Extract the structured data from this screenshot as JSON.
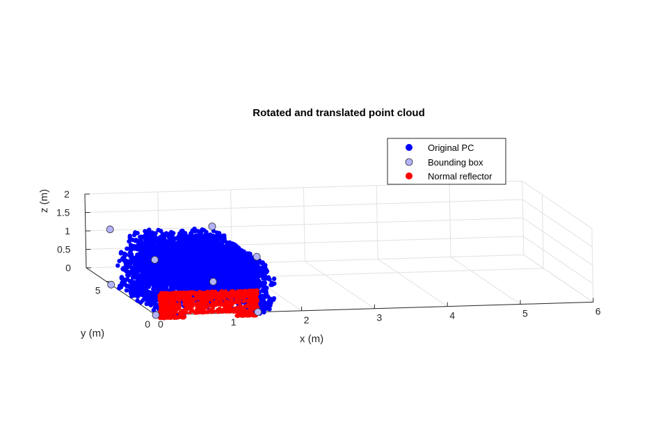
{
  "chart_data": {
    "type": "scatter",
    "title": "Rotated and translated point cloud",
    "xlabel": "x (m)",
    "ylabel": "y (m)",
    "zlabel": "z (m)",
    "xlim": [
      0,
      6
    ],
    "ylim": [
      0,
      7
    ],
    "zlim": [
      0,
      2
    ],
    "x_ticks": [
      "0",
      "1",
      "2",
      "3",
      "4",
      "5",
      "6"
    ],
    "y_ticks": [
      "0",
      "5"
    ],
    "z_ticks": [
      "0",
      "0.5",
      "1",
      "1.5",
      "2"
    ],
    "grid": true,
    "legend_position": "top-right",
    "series": [
      {
        "name": "Original PC",
        "color": "#0000ff",
        "marker": "filled-circle",
        "x_range": [
          0.0,
          1.75
        ],
        "y_range": [
          0.0,
          4.5
        ],
        "z_range": [
          -0.1,
          1.48
        ]
      },
      {
        "name": "Bounding box",
        "color": "#b3b3ff",
        "marker": "circle",
        "points": [
          [
            0,
            0,
            0
          ],
          [
            1.4,
            0,
            0
          ],
          [
            1.4,
            4.5,
            0
          ],
          [
            0,
            4.5,
            0
          ],
          [
            0,
            0,
            1.5
          ],
          [
            1.4,
            0,
            1.5
          ],
          [
            1.4,
            4.5,
            1.5
          ],
          [
            0,
            4.5,
            1.5
          ]
        ]
      },
      {
        "name": "Normal reflector",
        "color": "#ff0000",
        "marker": "filled-circle",
        "x_range": [
          0.0,
          1.6
        ],
        "y_range": [
          0.0,
          0.4
        ],
        "z_range": [
          -0.1,
          0.6
        ]
      }
    ]
  }
}
